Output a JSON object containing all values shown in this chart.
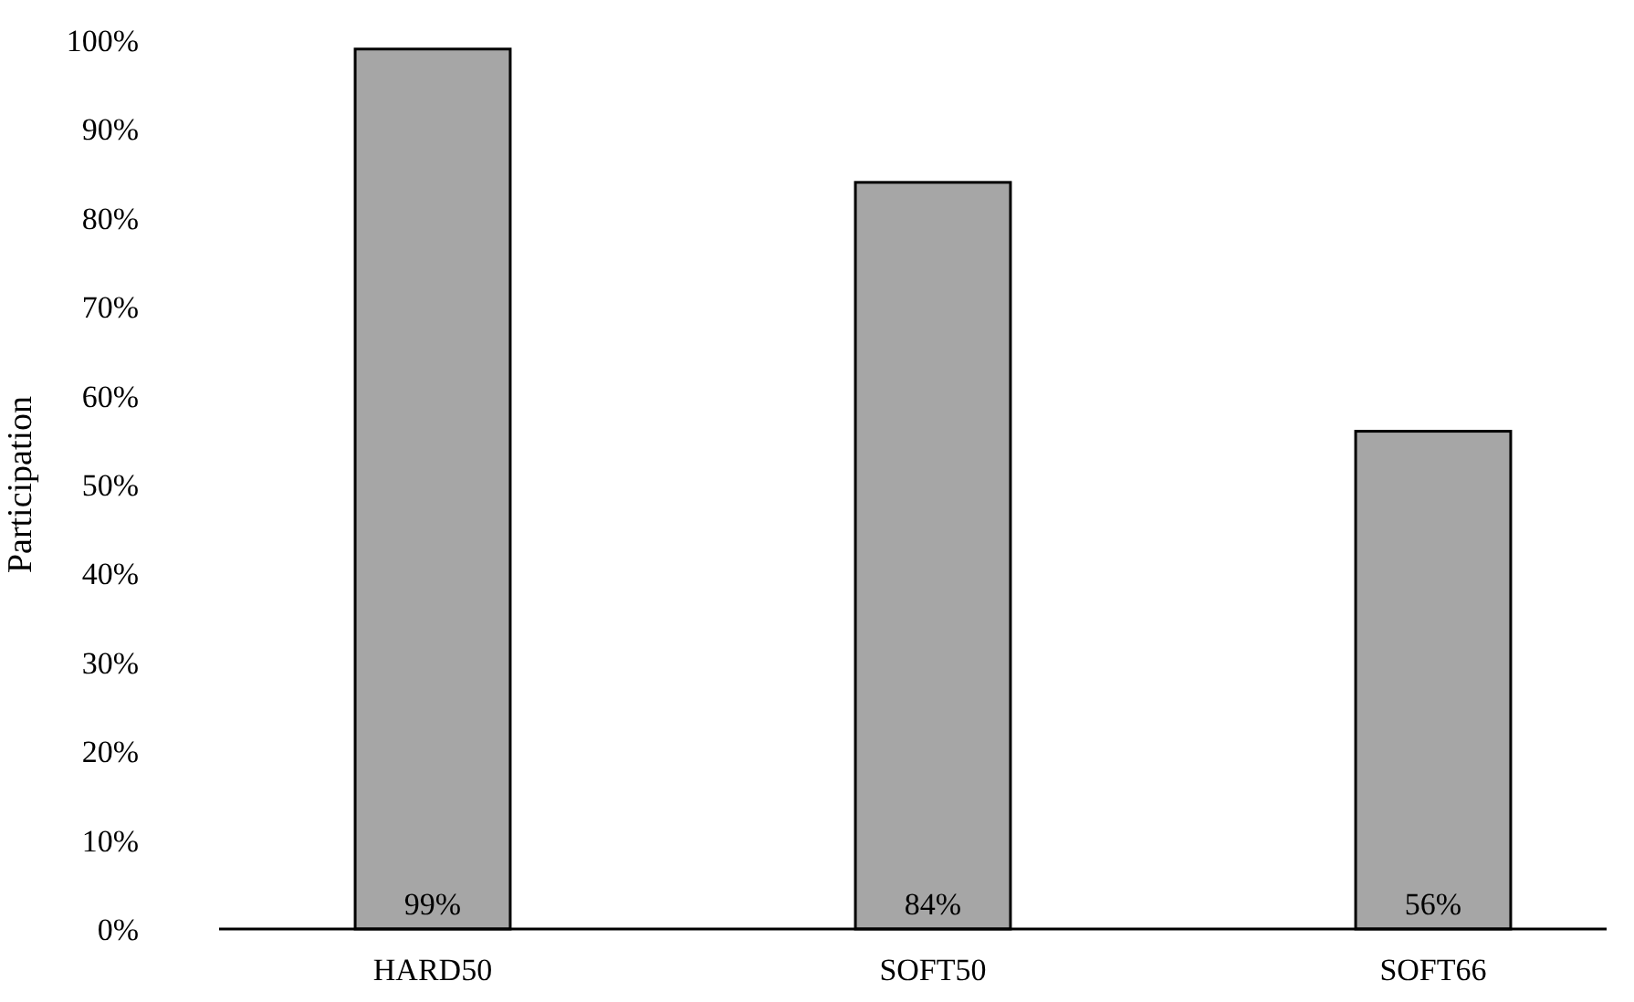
{
  "chart_data": {
    "type": "bar",
    "ylabel": "Participation",
    "categories": [
      "HARD50",
      "SOFT50",
      "SOFT66"
    ],
    "values": [
      99,
      84,
      56
    ],
    "color": "#a6a6a6",
    "value_labels": [
      "99%",
      "84%",
      "56%"
    ],
    "ylim": [
      0,
      100
    ],
    "yticks": [
      {
        "value": 0,
        "label": "0%"
      },
      {
        "value": 10,
        "label": "10%"
      },
      {
        "value": 20,
        "label": "20%"
      },
      {
        "value": 30,
        "label": "30%"
      },
      {
        "value": 40,
        "label": "40%"
      },
      {
        "value": 50,
        "label": "50%"
      },
      {
        "value": 60,
        "label": "60%"
      },
      {
        "value": 70,
        "label": "70%"
      },
      {
        "value": 80,
        "label": "80%"
      },
      {
        "value": 90,
        "label": "90%"
      },
      {
        "value": 100,
        "label": "100%"
      }
    ],
    "grid": false
  }
}
